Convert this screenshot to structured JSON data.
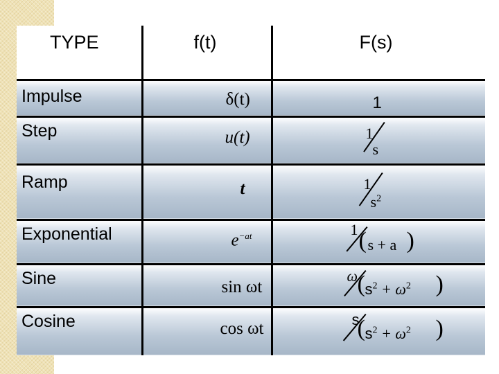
{
  "headers": {
    "type": "TYPE",
    "ft": "f(t)",
    "Fs": "F(s)"
  },
  "rows": [
    {
      "type": "Impulse",
      "ft": "δ(t)",
      "Fs_num": "1"
    },
    {
      "type": "Step",
      "ft": "u(t)",
      "Fs_num": "1",
      "Fs_den": "s"
    },
    {
      "type": "Ramp",
      "ft": "t",
      "Fs_num": "1",
      "Fs_den": "s",
      "Fs_den_exp": "2"
    },
    {
      "type": "Exponential",
      "ft_base": "e",
      "ft_exp": "−at",
      "Fs_num": "1",
      "Fs_den": "s + a"
    },
    {
      "type": "Sine",
      "ft": "sin ωt",
      "Fs_num": "ω",
      "Fs_den_a": "s",
      "Fs_den_a_exp": "2",
      "Fs_den_b": "+ ω",
      "Fs_den_b_exp": "2"
    },
    {
      "type": "Cosine",
      "ft": "cos ωt",
      "Fs_num": "s",
      "Fs_den_a": "s",
      "Fs_den_a_exp": "2",
      "Fs_den_b": "+ ω",
      "Fs_den_b_exp": "2"
    }
  ]
}
